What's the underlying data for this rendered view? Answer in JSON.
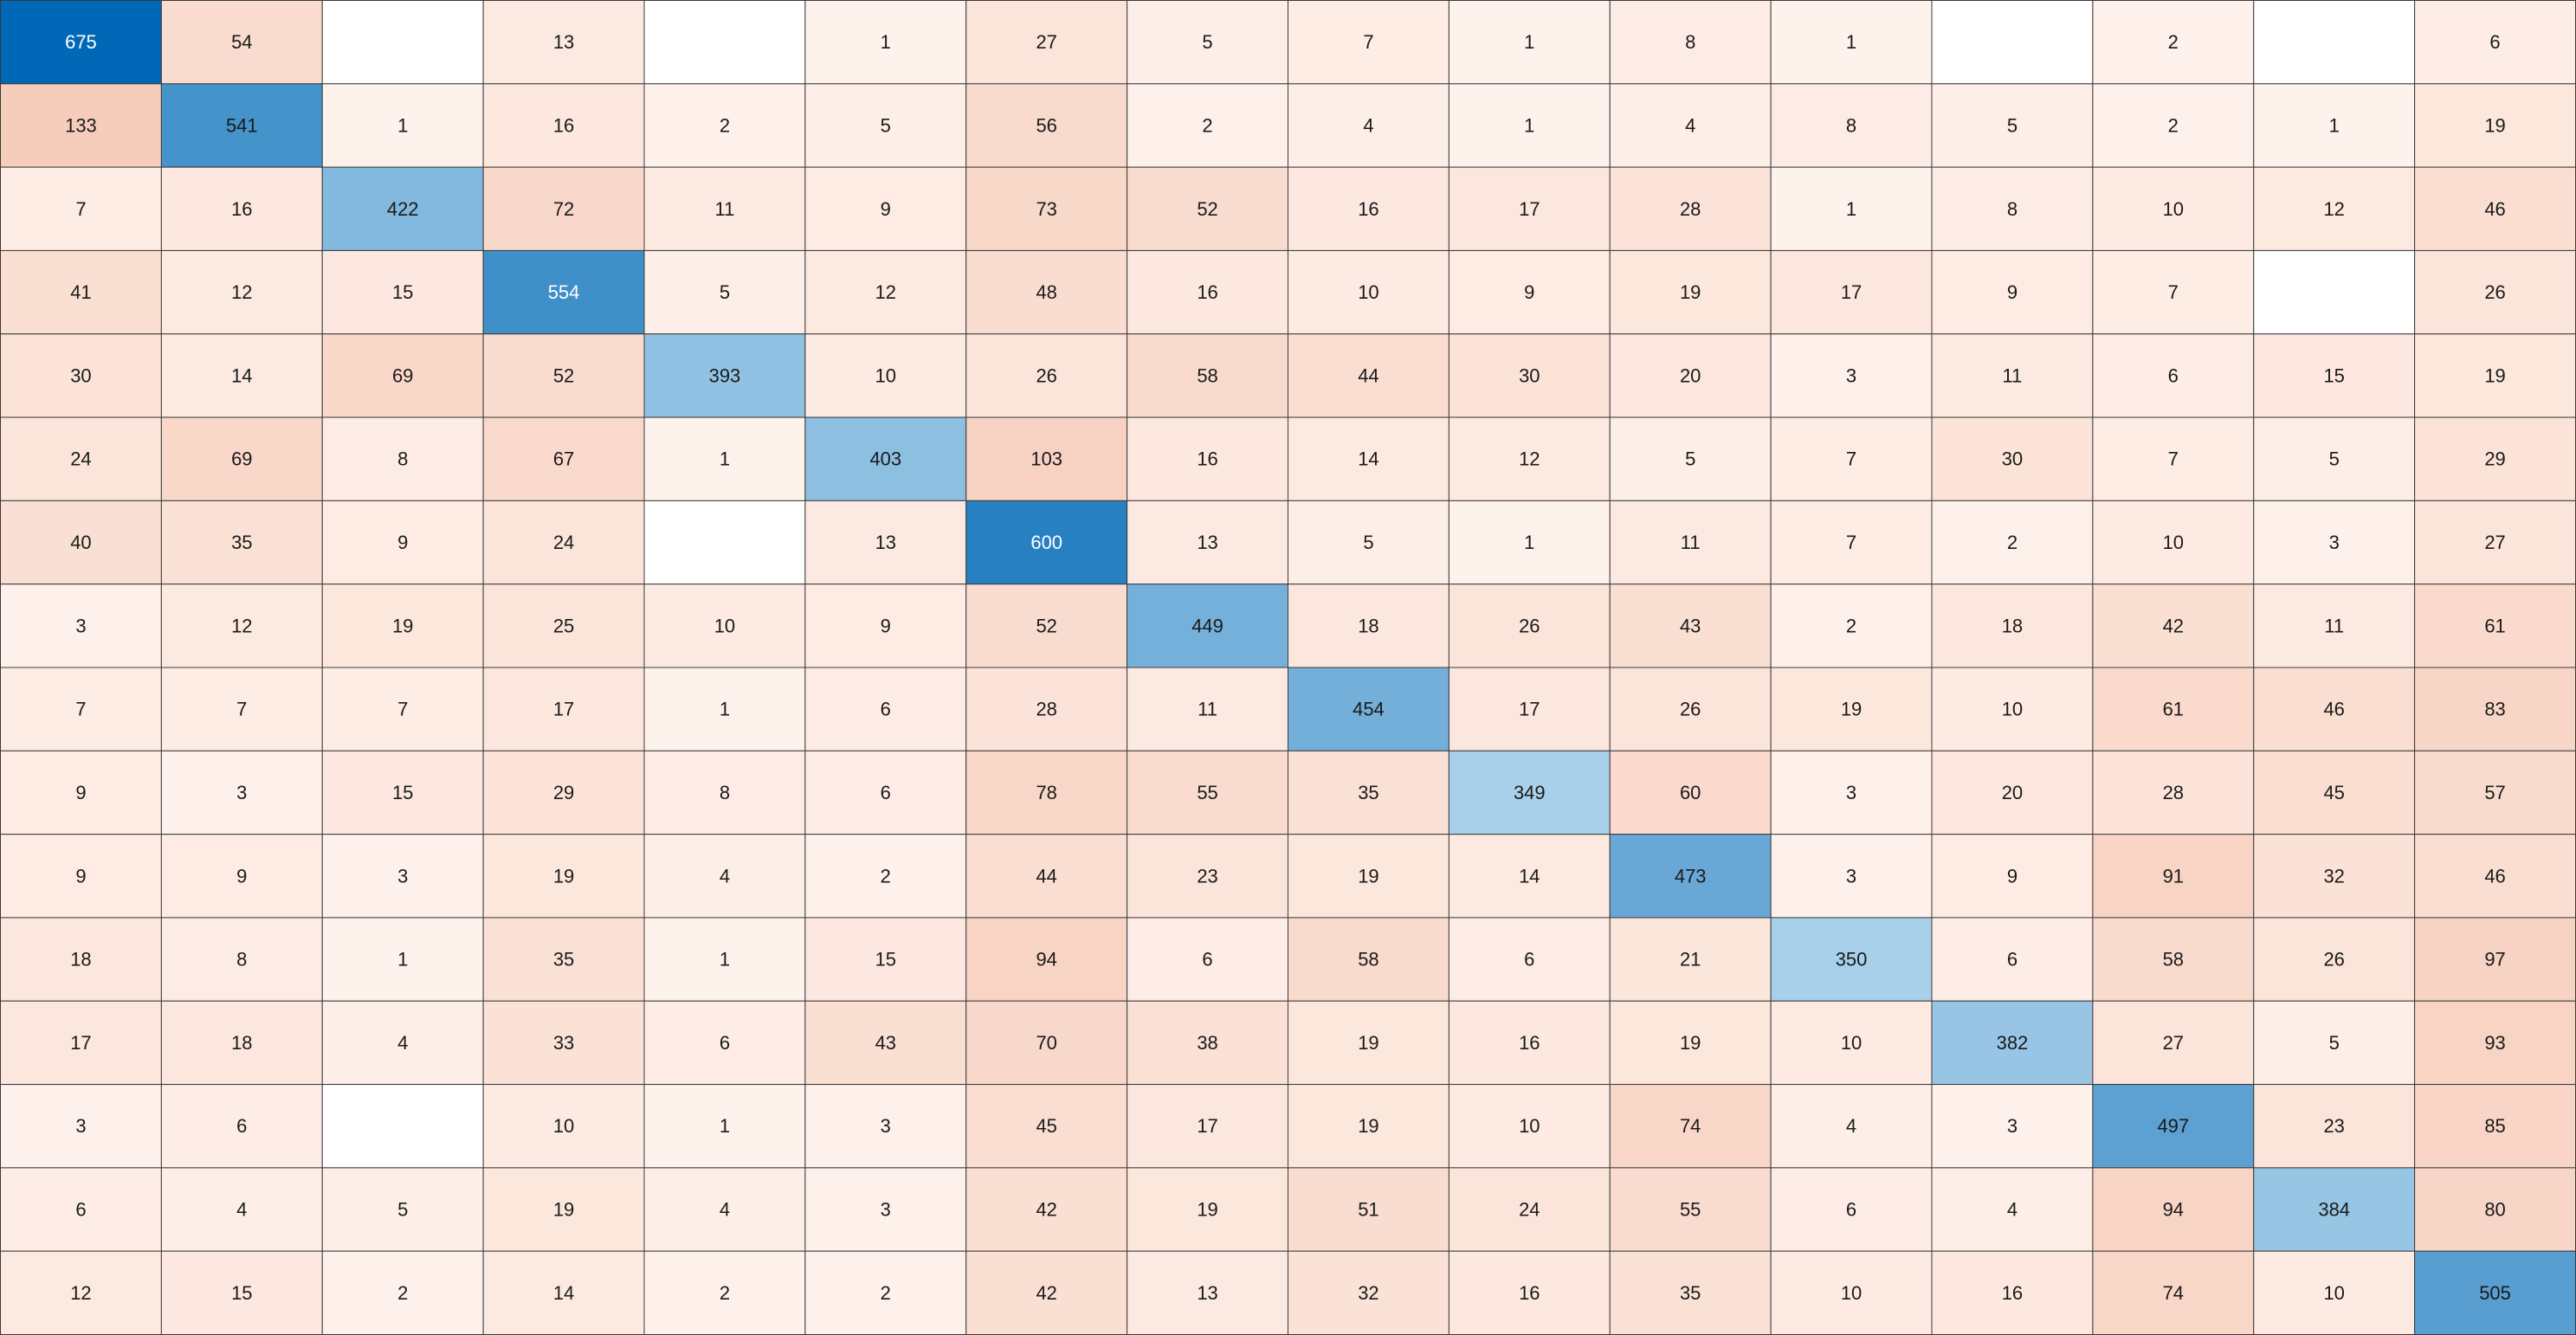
{
  "chart_data": {
    "type": "heatmap",
    "title": "",
    "xlabel": "",
    "ylabel": "",
    "colors": {
      "diagonal_high": "#0068b6",
      "diagonal_low": "#a9d0ea",
      "off_high": "#f6cdbb",
      "off_low": "#fff6f2",
      "empty": "#ffffff",
      "grid_line": "#3a3a3a",
      "text_dark": "#1a1a1a",
      "text_light": "#ffffff"
    },
    "rows": [
      [
        675,
        54,
        null,
        13,
        null,
        1,
        27,
        5,
        7,
        1,
        8,
        1,
        null,
        2,
        null,
        6
      ],
      [
        133,
        541,
        1,
        16,
        2,
        5,
        56,
        2,
        4,
        1,
        4,
        8,
        5,
        2,
        1,
        19
      ],
      [
        7,
        16,
        422,
        72,
        11,
        9,
        73,
        52,
        16,
        17,
        28,
        1,
        8,
        10,
        12,
        46
      ],
      [
        41,
        12,
        15,
        554,
        5,
        12,
        48,
        16,
        10,
        9,
        19,
        17,
        9,
        7,
        null,
        26
      ],
      [
        30,
        14,
        69,
        52,
        393,
        10,
        26,
        58,
        44,
        30,
        20,
        3,
        11,
        6,
        15,
        19
      ],
      [
        24,
        69,
        8,
        67,
        1,
        403,
        103,
        16,
        14,
        12,
        5,
        7,
        30,
        7,
        5,
        29
      ],
      [
        40,
        35,
        9,
        24,
        null,
        13,
        600,
        13,
        5,
        1,
        11,
        7,
        2,
        10,
        3,
        27
      ],
      [
        3,
        12,
        19,
        25,
        10,
        9,
        52,
        449,
        18,
        26,
        43,
        2,
        18,
        42,
        11,
        61
      ],
      [
        7,
        7,
        7,
        17,
        1,
        6,
        28,
        11,
        454,
        17,
        26,
        19,
        10,
        61,
        46,
        83
      ],
      [
        9,
        3,
        15,
        29,
        8,
        6,
        78,
        55,
        35,
        349,
        60,
        3,
        20,
        28,
        45,
        57
      ],
      [
        9,
        9,
        3,
        19,
        4,
        2,
        44,
        23,
        19,
        14,
        473,
        3,
        9,
        91,
        32,
        46
      ],
      [
        18,
        8,
        1,
        35,
        1,
        15,
        94,
        6,
        58,
        6,
        21,
        350,
        6,
        58,
        26,
        97
      ],
      [
        17,
        18,
        4,
        33,
        6,
        43,
        70,
        38,
        19,
        16,
        19,
        10,
        382,
        27,
        5,
        93
      ],
      [
        3,
        6,
        null,
        10,
        1,
        3,
        45,
        17,
        19,
        10,
        74,
        4,
        3,
        497,
        23,
        85
      ],
      [
        6,
        4,
        5,
        19,
        4,
        3,
        42,
        19,
        51,
        24,
        55,
        6,
        4,
        94,
        384,
        80
      ],
      [
        12,
        15,
        2,
        14,
        2,
        2,
        42,
        13,
        32,
        16,
        35,
        10,
        16,
        74,
        10,
        505
      ]
    ]
  }
}
